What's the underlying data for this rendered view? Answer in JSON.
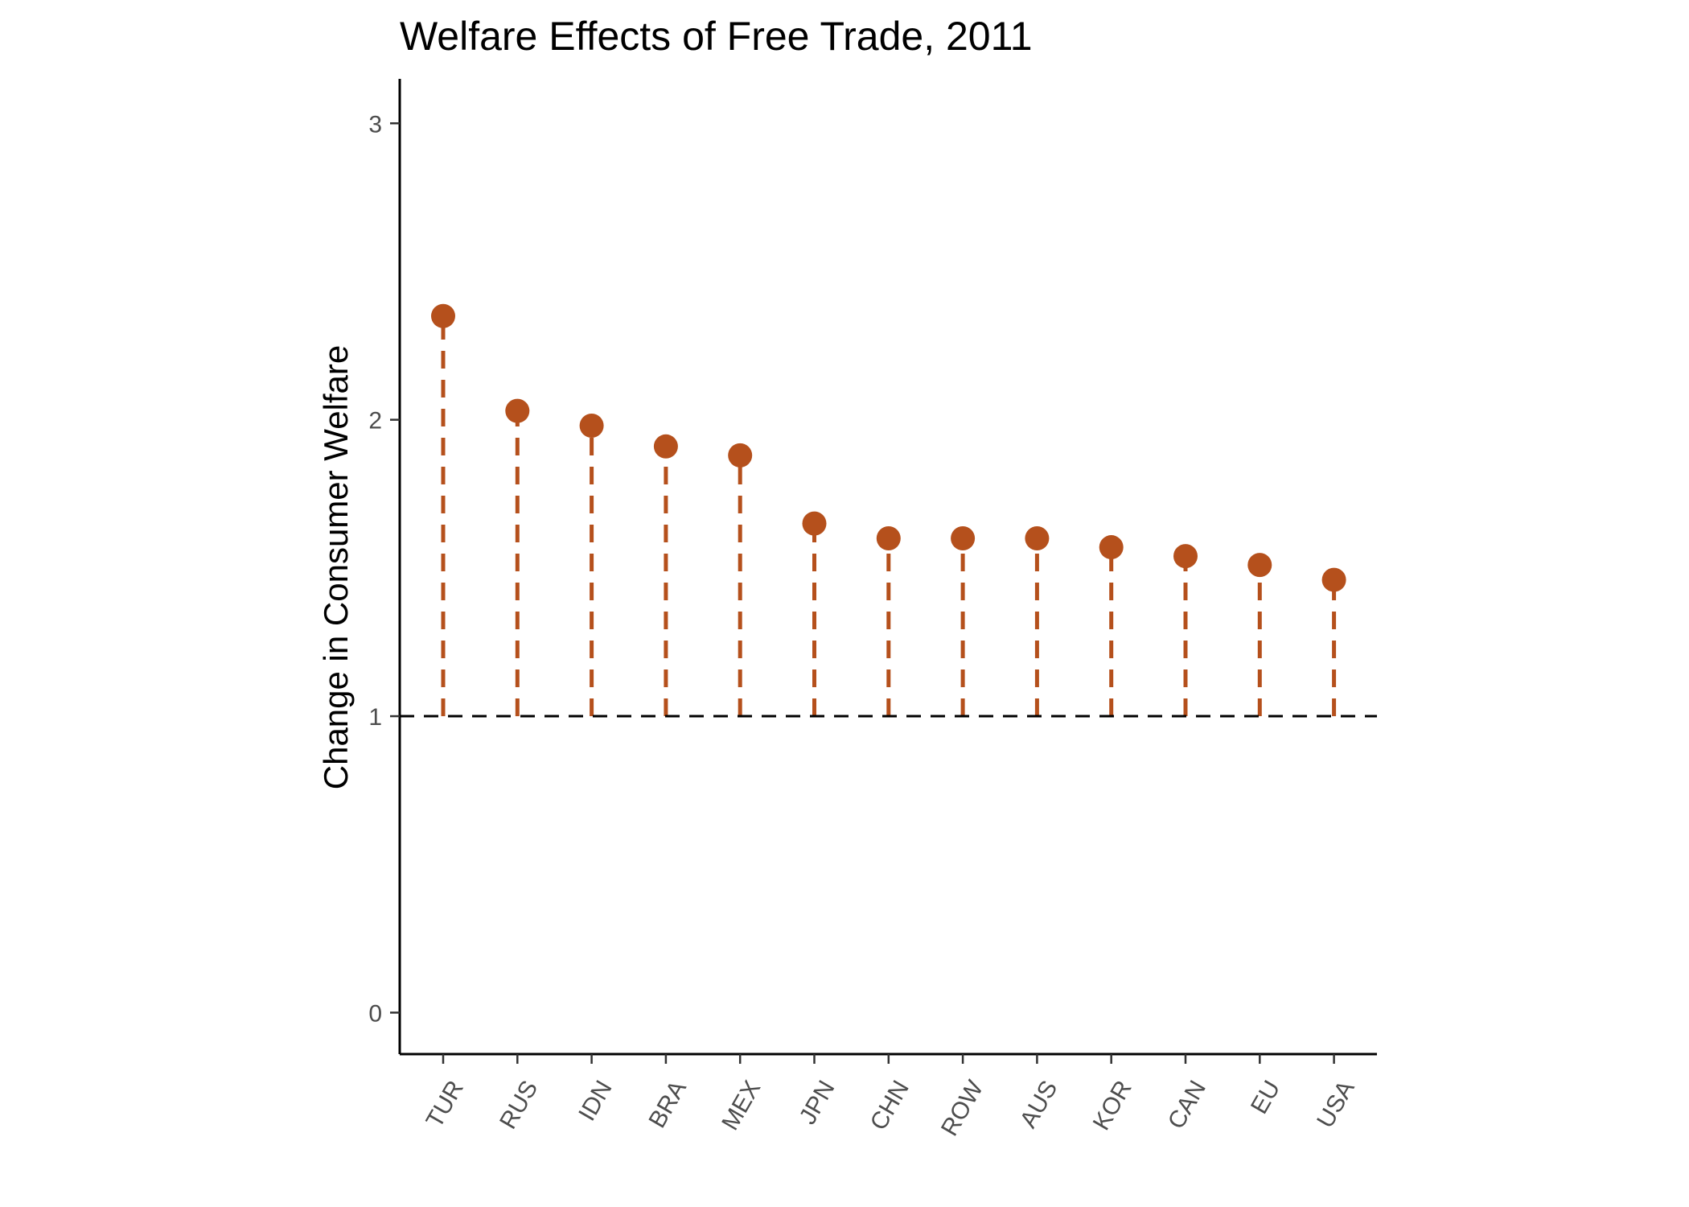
{
  "chart_data": {
    "type": "scatter",
    "title": "Welfare Effects of Free Trade, 2011",
    "xlabel": "",
    "ylabel": "Change in Consumer Welfare",
    "categories": [
      "TUR",
      "RUS",
      "IDN",
      "BRA",
      "MEX",
      "JPN",
      "CHN",
      "ROW",
      "AUS",
      "KOR",
      "CAN",
      "EU",
      "USA"
    ],
    "values": [
      2.35,
      2.03,
      1.98,
      1.91,
      1.88,
      1.65,
      1.6,
      1.6,
      1.6,
      1.57,
      1.54,
      1.51,
      1.46
    ],
    "baseline": 1,
    "ylim": [
      -0.14,
      3.15
    ],
    "yticks": [
      0,
      1,
      2,
      3
    ],
    "x_tick_rotation_deg": -60,
    "grid": false,
    "legend": "none",
    "colors": {
      "point": "#B5501C",
      "stem": "#B5501C",
      "reference_line": "#000000"
    }
  }
}
